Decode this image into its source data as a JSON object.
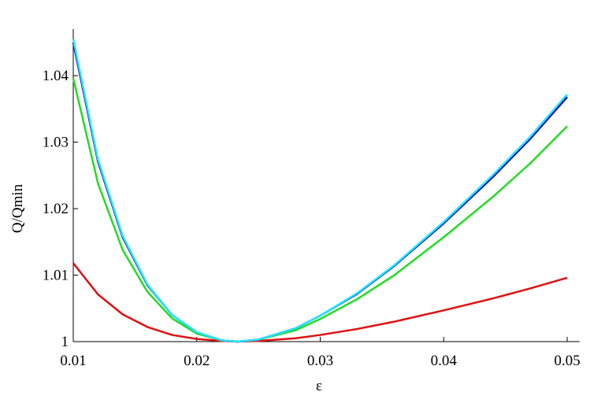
{
  "chart_data": {
    "type": "line",
    "x_label": "ε",
    "y_label": "Q/Qmin",
    "x": [
      0.01,
      0.012,
      0.014,
      0.016,
      0.018,
      0.02,
      0.022,
      0.0233,
      0.025,
      0.028,
      0.03,
      0.033,
      0.036,
      0.04,
      0.044,
      0.047,
      0.05
    ],
    "series": [
      {
        "color": "#e01010",
        "values": [
          1.0118,
          1.0071,
          1.0041,
          1.0022,
          1.001,
          1.0004,
          1.0001,
          1,
          1.0001,
          1.0005,
          1.001,
          1.0019,
          1.003,
          1.0047,
          1.0065,
          1.008,
          1.0096
        ]
      },
      {
        "color": "#22dd22",
        "values": [
          1.0396,
          1.0238,
          1.0138,
          1.0075,
          1.0035,
          1.0012,
          1.0002,
          1,
          1.0003,
          1.0017,
          1.0034,
          1.0064,
          1.01,
          1.0157,
          1.0218,
          1.0268,
          1.0324
        ]
      },
      {
        "color": "#0000b0",
        "values": [
          1.045,
          1.0271,
          1.0157,
          1.0085,
          1.004,
          1.0014,
          1.0002,
          1,
          1.0003,
          1.002,
          1.0039,
          1.0072,
          1.0114,
          1.0178,
          1.0248,
          1.0305,
          1.0368
        ]
      },
      {
        "color": "#22e6ff",
        "values": [
          1.0455,
          1.0274,
          1.0159,
          1.0086,
          1.004,
          1.0014,
          1.0002,
          1,
          1.0003,
          1.002,
          1.0039,
          1.0073,
          1.0115,
          1.018,
          1.0251,
          1.0308,
          1.0372
        ]
      }
    ],
    "xlim": [
      0.01,
      0.051
    ],
    "xticks": [
      0.01,
      0.02,
      0.03,
      0.04,
      0.05
    ],
    "ylim": [
      1,
      1.047
    ],
    "yticks": [
      1,
      1.01,
      1.02,
      1.03,
      1.04
    ]
  }
}
